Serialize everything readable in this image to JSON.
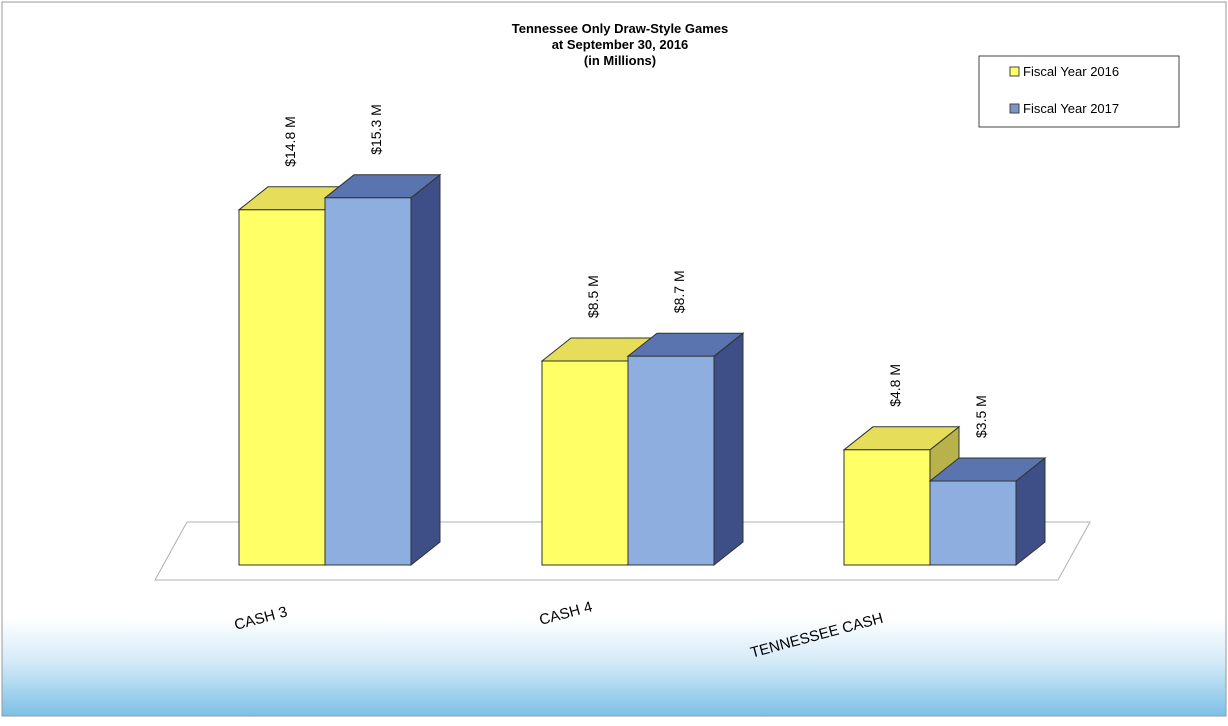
{
  "chart_data": {
    "type": "bar",
    "title": "Tennessee Only Draw-Style Games",
    "subtitle": "at September 30, 2016",
    "subtitle2": "(in Millions)",
    "categories": [
      "CASH 3",
      "CASH 4",
      "TENNESSEE CASH"
    ],
    "series": [
      {
        "name": "Fiscal Year 2016",
        "values": [
          14.8,
          8.5,
          4.8
        ],
        "labels": [
          "$14.8 M",
          "$8.5 M",
          "$4.8 M"
        ],
        "color": "#ffff66",
        "top_color": "#e6de5a",
        "side_color": "#b8b24a",
        "swatch_color": "#ffff66"
      },
      {
        "name": "Fiscal Year 2017",
        "values": [
          15.3,
          8.7,
          3.5
        ],
        "labels": [
          "$15.3 M",
          "$8.7 M",
          "$3.5 M"
        ],
        "color": "#8eaee0",
        "top_color": "#5a74b0",
        "side_color": "#3d4f86",
        "swatch_color": "#7a96c8"
      }
    ],
    "legend_position": "top-right",
    "grid": false,
    "three_d": true,
    "ylim": [
      0,
      16
    ]
  }
}
